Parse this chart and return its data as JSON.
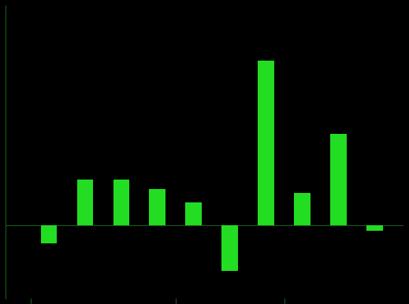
{
  "values": [
    -2.0,
    5.0,
    5.0,
    4.0,
    2.5,
    -5.0,
    18.0,
    3.5,
    10.0,
    -0.6
  ],
  "bar_color": "#22dd22",
  "background_color": "#000000",
  "spine_color": "#1a5a1a",
  "ylim": [
    -8,
    24
  ],
  "figsize": [
    5.19,
    3.86
  ],
  "dpi": 100,
  "bar_width": 0.45
}
